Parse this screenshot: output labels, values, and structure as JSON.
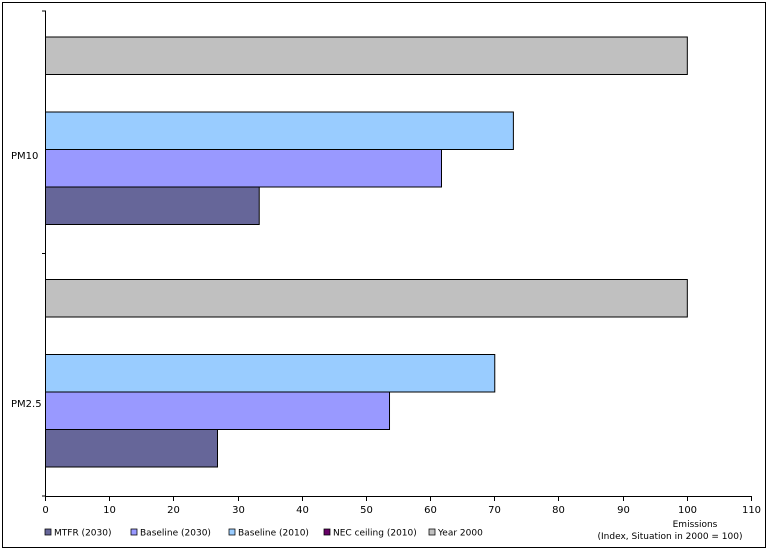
{
  "chart_data": {
    "type": "bar",
    "orientation": "horizontal",
    "categories": [
      "PM10",
      "PM2.5"
    ],
    "series": [
      {
        "name": "MTFR (2030)",
        "color": "#666699",
        "values": [
          33.3,
          26.8
        ]
      },
      {
        "name": "Baseline (2030)",
        "color": "#9999ff",
        "values": [
          61.7,
          53.6
        ]
      },
      {
        "name": "Baseline (2010)",
        "color": "#99ccff",
        "values": [
          72.9,
          70.0
        ]
      },
      {
        "name": "NEC ceiling (2010)",
        "color": "#660066",
        "values": [
          null,
          null
        ]
      },
      {
        "name": "Year 2000",
        "color": "#c0c0c0",
        "values": [
          100,
          100
        ]
      }
    ],
    "xlim": [
      0,
      110
    ],
    "xticks": [
      0,
      10,
      20,
      30,
      40,
      50,
      60,
      70,
      80,
      90,
      100,
      110
    ],
    "xlabel_line1": "Emissions",
    "xlabel_line2": "(Index, Situation in 2000 = 100)",
    "legend_position": "bottom",
    "grid": false
  }
}
